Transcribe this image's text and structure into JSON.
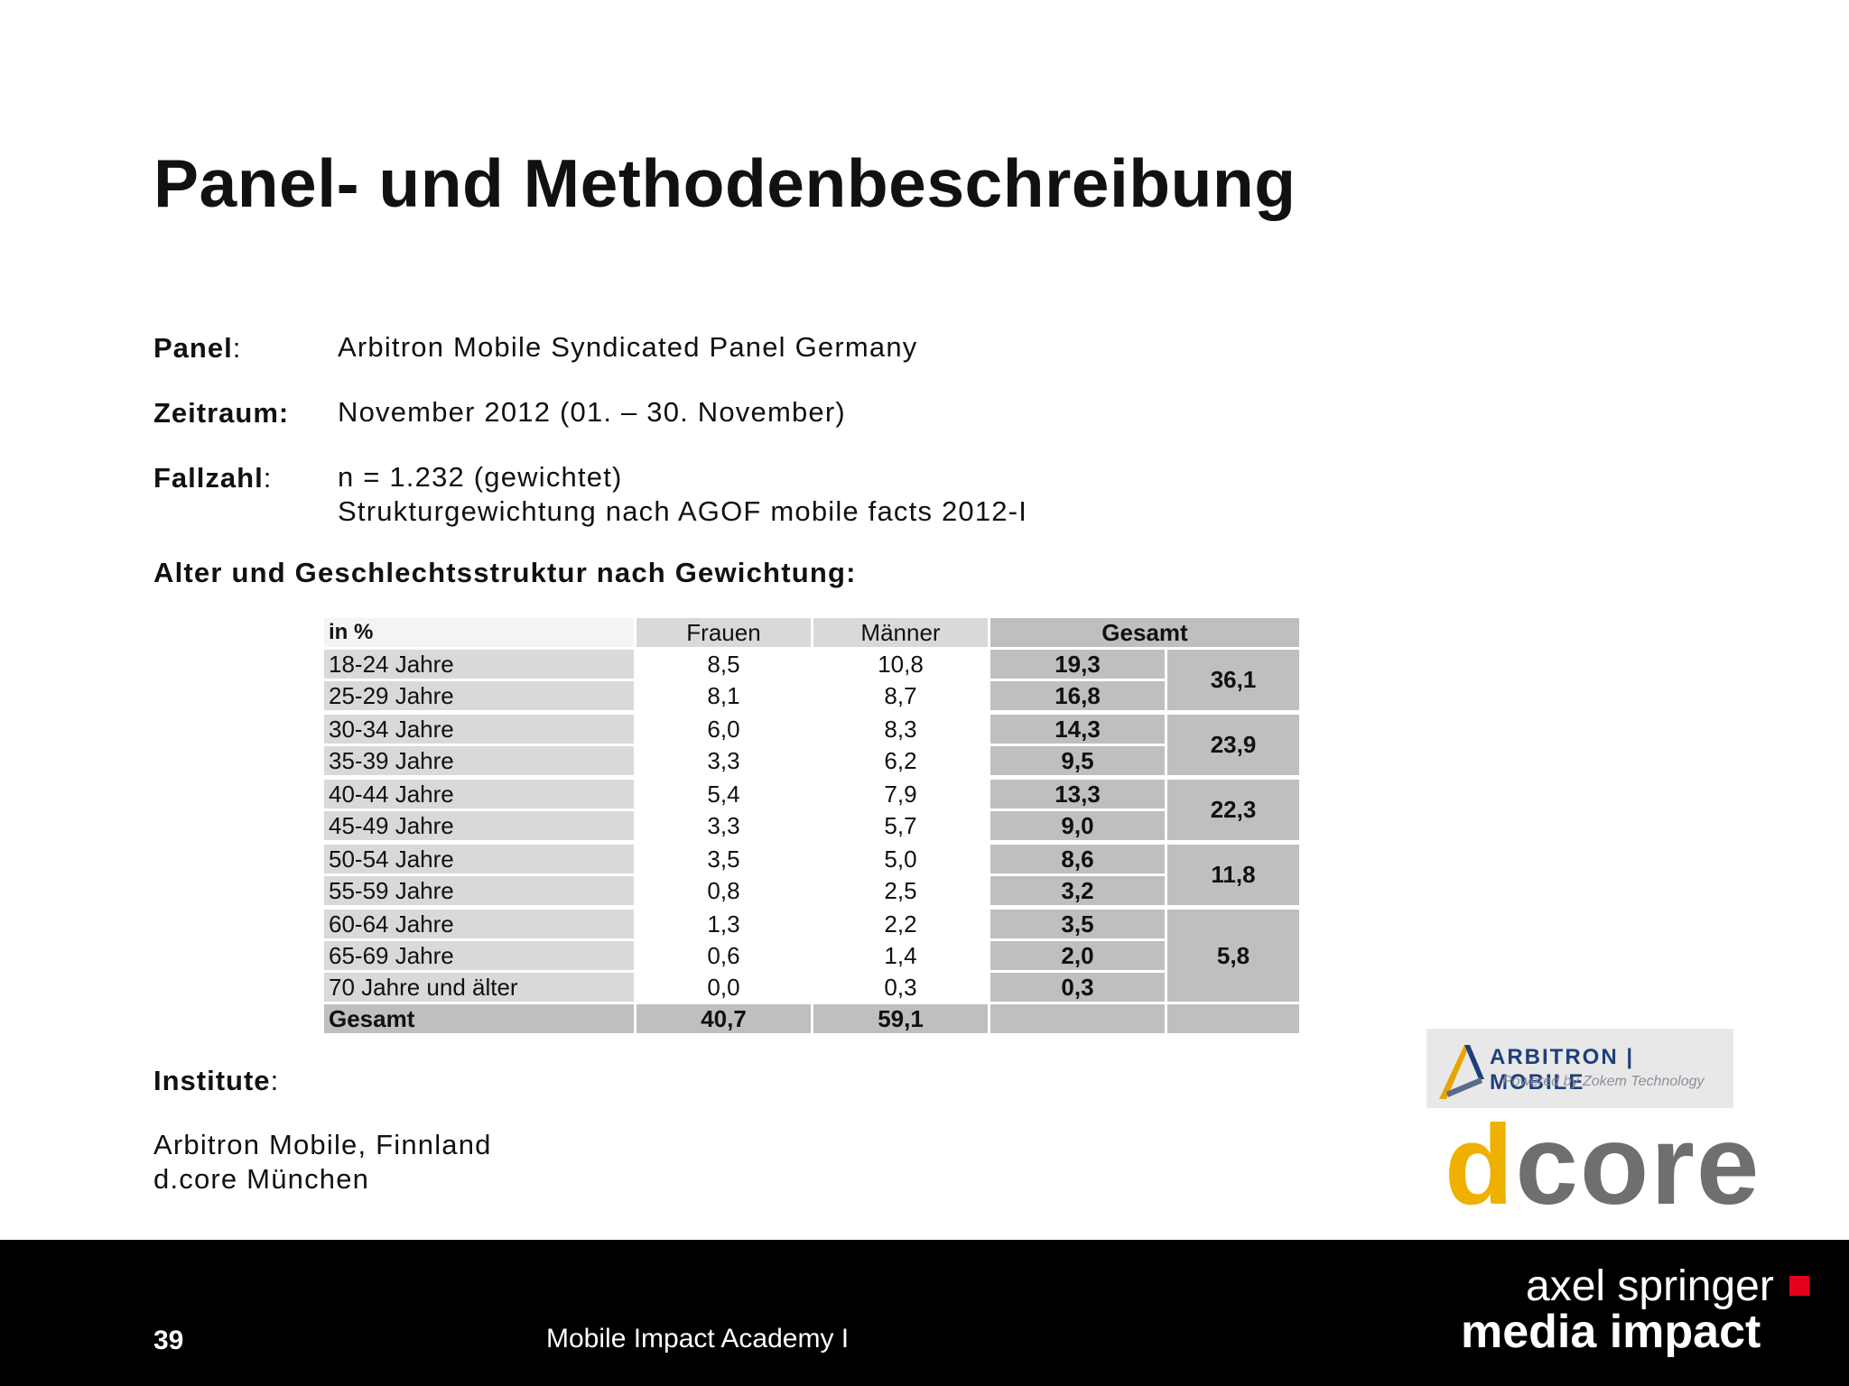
{
  "title": "Panel- und Methodenbeschreibung",
  "fields": {
    "panel_label": "Panel",
    "panel_value": "Arbitron Mobile Syndicated Panel Germany",
    "zeitraum_label": "Zeitraum:",
    "zeitraum_value": "November 2012 (01. – 30. November)",
    "fallzahl_label": "Fallzahl",
    "fallzahl_line1": "n = 1.232 (gewichtet)",
    "fallzahl_line2": "Strukturgewichtung nach AGOF mobile facts 2012-I"
  },
  "section_heading": "Alter und Geschlechtsstruktur nach Gewichtung:",
  "table": {
    "head_label": "in %",
    "col_frauen": "Frauen",
    "col_maenner": "Männer",
    "col_gesamt": "Gesamt",
    "rows": [
      {
        "label": "18-24 Jahre",
        "frauen": "8,5",
        "maenner": "10,8",
        "gesamt": "19,3"
      },
      {
        "label": "25-29 Jahre",
        "frauen": "8,1",
        "maenner": "8,7",
        "gesamt": "16,8"
      },
      {
        "label": "30-34 Jahre",
        "frauen": "6,0",
        "maenner": "8,3",
        "gesamt": "14,3"
      },
      {
        "label": "35-39 Jahre",
        "frauen": "3,3",
        "maenner": "6,2",
        "gesamt": "9,5"
      },
      {
        "label": "40-44 Jahre",
        "frauen": "5,4",
        "maenner": "7,9",
        "gesamt": "13,3"
      },
      {
        "label": "45-49 Jahre",
        "frauen": "3,3",
        "maenner": "5,7",
        "gesamt": "9,0"
      },
      {
        "label": "50-54 Jahre",
        "frauen": "3,5",
        "maenner": "5,0",
        "gesamt": "8,6"
      },
      {
        "label": "55-59 Jahre",
        "frauen": "0,8",
        "maenner": "2,5",
        "gesamt": "3,2"
      },
      {
        "label": "60-64 Jahre",
        "frauen": "1,3",
        "maenner": "2,2",
        "gesamt": "3,5"
      },
      {
        "label": "65-69 Jahre",
        "frauen": "0,6",
        "maenner": "1,4",
        "gesamt": "2,0"
      },
      {
        "label": "70 Jahre und älter",
        "frauen": "0,0",
        "maenner": "0,3",
        "gesamt": "0,3"
      }
    ],
    "groups": [
      "36,1",
      "23,9",
      "22,3",
      "11,8",
      "5,8"
    ],
    "total": {
      "label": "Gesamt",
      "frauen": "40,7",
      "maenner": "59,1"
    }
  },
  "institute": {
    "label": "Institute",
    "line1": "Arbitron Mobile, Finnland",
    "line2": "d.core München"
  },
  "logos": {
    "arbitron_name": "ARBITRON",
    "arbitron_mobile": "MOBILE",
    "arbitron_tagline": "Powered by Zokem Technology",
    "dcore_d": "d",
    "dcore_core": "core"
  },
  "footer": {
    "page_number": "39",
    "text": "Mobile Impact Academy I",
    "brand_line1": "axel springer",
    "brand_line2": "media impact",
    "brand_accent_color": "#e2001a"
  }
}
